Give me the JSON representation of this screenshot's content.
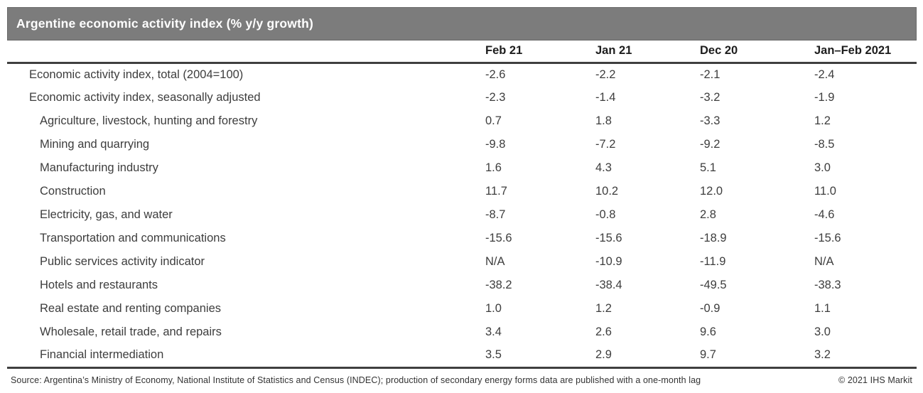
{
  "chart_data": {
    "type": "table",
    "title": "Argentine economic activity index (% y/y growth)",
    "columns": [
      "Feb 21",
      "Jan 21",
      "Dec 20",
      "Jan–Feb 2021"
    ],
    "rows": [
      {
        "label": "Economic activity index, total (2004=100)",
        "indent": 1,
        "values": [
          "-2.6",
          "-2.2",
          "-2.1",
          "-2.4"
        ]
      },
      {
        "label": "Economic activity index, seasonally adjusted",
        "indent": 1,
        "values": [
          "-2.3",
          "-1.4",
          "-3.2",
          "-1.9"
        ]
      },
      {
        "label": "Agriculture, livestock, hunting and forestry",
        "indent": 2,
        "values": [
          "0.7",
          "1.8",
          "-3.3",
          "1.2"
        ]
      },
      {
        "label": "Mining and quarrying",
        "indent": 2,
        "values": [
          "-9.8",
          "-7.2",
          "-9.2",
          "-8.5"
        ]
      },
      {
        "label": "Manufacturing industry",
        "indent": 2,
        "values": [
          "1.6",
          "4.3",
          "5.1",
          "3.0"
        ]
      },
      {
        "label": "Construction",
        "indent": 2,
        "values": [
          "11.7",
          "10.2",
          "12.0",
          "11.0"
        ]
      },
      {
        "label": "Electricity, gas, and water",
        "indent": 2,
        "values": [
          "-8.7",
          "-0.8",
          "2.8",
          "-4.6"
        ]
      },
      {
        "label": "Transportation and communications",
        "indent": 2,
        "values": [
          "-15.6",
          "-15.6",
          "-18.9",
          "-15.6"
        ]
      },
      {
        "label": "Public services activity indicator",
        "indent": 2,
        "values": [
          "N/A",
          "-10.9",
          "-11.9",
          "N/A"
        ]
      },
      {
        "label": "Hotels and restaurants",
        "indent": 2,
        "values": [
          "-38.2",
          "-38.4",
          "-49.5",
          "-38.3"
        ]
      },
      {
        "label": "Real estate and renting companies",
        "indent": 2,
        "values": [
          "1.0",
          "1.2",
          "-0.9",
          "1.1"
        ]
      },
      {
        "label": "Wholesale, retail trade, and repairs",
        "indent": 2,
        "values": [
          "3.4",
          "2.6",
          "9.6",
          "3.0"
        ]
      },
      {
        "label": "Financial intermediation",
        "indent": 2,
        "values": [
          "3.5",
          "2.9",
          "9.7",
          "3.2"
        ]
      }
    ]
  },
  "footer": {
    "source": "Source: Argentina’s Ministry of Economy, National Institute of Statistics and Census (INDEC); production of secondary energy forms data are published with a one-month lag",
    "copyright": "© 2021 IHS Markit"
  },
  "colors": {
    "title_bar_background": "#7c7c7c",
    "title_bar_border": "#696969",
    "title_text": "#ffffff",
    "header_text": "#1d1d1d",
    "body_text": "#3d3d3d",
    "rule_line": "#3f3f3f"
  }
}
